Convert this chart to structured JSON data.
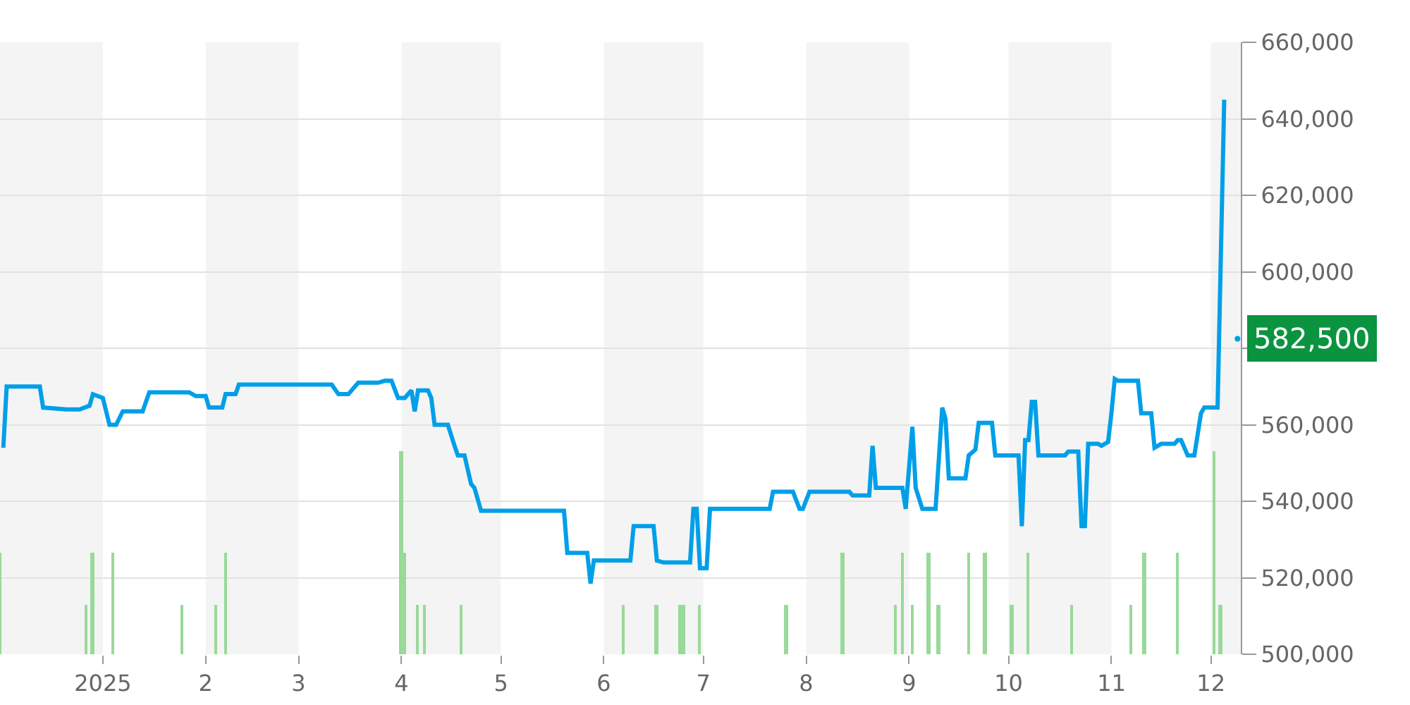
{
  "chart_data": {
    "type": "line",
    "xlim": [
      "2024-12-01",
      "2025-12-10"
    ],
    "xticks": [
      {
        "value": "2025-01-01",
        "label": "2025"
      },
      {
        "value": "2025-02-01",
        "label": "2"
      },
      {
        "value": "2025-03-01",
        "label": "3"
      },
      {
        "value": "2025-04-01",
        "label": "4"
      },
      {
        "value": "2025-05-01",
        "label": "5"
      },
      {
        "value": "2025-06-01",
        "label": "6"
      },
      {
        "value": "2025-07-01",
        "label": "7"
      },
      {
        "value": "2025-08-01",
        "label": "8"
      },
      {
        "value": "2025-09-01",
        "label": "9"
      },
      {
        "value": "2025-10-01",
        "label": "10"
      },
      {
        "value": "2025-11-01",
        "label": "11"
      },
      {
        "value": "2025-12-01",
        "label": "12"
      }
    ],
    "ylim": [
      500000,
      660000
    ],
    "yticks": [
      {
        "value": 500000,
        "label": "500,000"
      },
      {
        "value": 520000,
        "label": "520,000"
      },
      {
        "value": 540000,
        "label": "540,000"
      },
      {
        "value": 560000,
        "label": "560,000"
      },
      {
        "value": 580000,
        "label": null
      },
      {
        "value": 600000,
        "label": "600,000"
      },
      {
        "value": 620000,
        "label": "620,000"
      },
      {
        "value": 640000,
        "label": "640,000"
      },
      {
        "value": 660000,
        "label": "660,000"
      }
    ],
    "grid": "y",
    "marker": "none",
    "line_style": "solid",
    "bands": [
      {
        "axis": "x",
        "from": "2024-12-01",
        "to": "2025-01-01",
        "color": "#f4f4f4"
      },
      {
        "axis": "x",
        "from": "2025-02-01",
        "to": "2025-03-01",
        "color": "#f4f4f4"
      },
      {
        "axis": "x",
        "from": "2025-04-01",
        "to": "2025-05-01",
        "color": "#f4f4f4"
      },
      {
        "axis": "x",
        "from": "2025-06-01",
        "to": "2025-07-01",
        "color": "#f4f4f4"
      },
      {
        "axis": "x",
        "from": "2025-08-01",
        "to": "2025-09-01",
        "color": "#f4f4f4"
      },
      {
        "axis": "x",
        "from": "2025-10-01",
        "to": "2025-11-01",
        "color": "#f4f4f4"
      },
      {
        "axis": "x",
        "from": "2025-12-01",
        "to": "2025-12-10",
        "color": "#f4f4f4"
      }
    ],
    "annotations": [
      {
        "text": "582,500",
        "x": "2025-12-09",
        "y": 582500
      }
    ],
    "series": [
      {
        "type": "bar",
        "color": "#99d999",
        "x": [
          "2024-12-01",
          "2024-12-27",
          "2024-12-29",
          "2025-01-04",
          "2025-01-25",
          "2025-02-04",
          "2025-02-07",
          "2025-04-01",
          "2025-04-02",
          "2025-04-06",
          "2025-04-08",
          "2025-04-19",
          "2025-06-07",
          "2025-06-17",
          "2025-06-24",
          "2025-06-25",
          "2025-06-30",
          "2025-07-26",
          "2025-08-12",
          "2025-08-28",
          "2025-08-30",
          "2025-09-02",
          "2025-09-07",
          "2025-09-10",
          "2025-09-19",
          "2025-09-24",
          "2025-10-02",
          "2025-10-07",
          "2025-10-20",
          "2025-11-07",
          "2025-11-11",
          "2025-11-21",
          "2025-12-02",
          "2025-12-04"
        ],
        "values": [
          526500,
          513000,
          526500,
          526500,
          513000,
          513000,
          526500,
          553000,
          526500,
          513000,
          513000,
          513000,
          513000,
          513000,
          513000,
          513000,
          513000,
          513000,
          526500,
          513000,
          526500,
          513000,
          526500,
          513000,
          526500,
          526500,
          513000,
          526500,
          513000,
          513000,
          526500,
          526500,
          553000,
          513000
        ]
      },
      {
        "color": "#009fe8",
        "x": [
          "2024-12-02",
          "2024-12-03",
          "2024-12-13",
          "2024-12-14",
          "2024-12-21",
          "2024-12-25",
          "2024-12-28",
          "2024-12-29",
          "2025-01-01",
          "2025-01-03",
          "2025-01-05",
          "2025-01-07",
          "2025-01-13",
          "2025-01-15",
          "2025-01-27",
          "2025-01-29",
          "2025-02-01",
          "2025-02-02",
          "2025-02-06",
          "2025-02-07",
          "2025-02-10",
          "2025-02-11",
          "2025-03-11",
          "2025-03-13",
          "2025-03-16",
          "2025-03-19",
          "2025-03-25",
          "2025-03-27",
          "2025-03-29",
          "2025-03-31",
          "2025-04-02",
          "2025-04-04",
          "2025-04-05",
          "2025-04-06",
          "2025-04-09",
          "2025-04-10",
          "2025-04-11",
          "2025-04-15",
          "2025-04-17",
          "2025-04-18",
          "2025-04-20",
          "2025-04-22",
          "2025-04-23",
          "2025-04-25",
          "2025-05-20",
          "2025-05-21",
          "2025-05-27",
          "2025-05-28",
          "2025-05-29",
          "2025-06-09",
          "2025-06-10",
          "2025-06-16",
          "2025-06-17",
          "2025-06-19",
          "2025-06-27",
          "2025-06-28",
          "2025-06-29",
          "2025-06-30",
          "2025-07-02",
          "2025-07-03",
          "2025-07-21",
          "2025-07-22",
          "2025-07-28",
          "2025-07-30",
          "2025-07-31",
          "2025-08-02",
          "2025-08-14",
          "2025-08-15",
          "2025-08-20",
          "2025-08-21",
          "2025-08-22",
          "2025-08-30",
          "2025-08-31",
          "2025-09-02",
          "2025-09-03",
          "2025-09-05",
          "2025-09-09",
          "2025-09-11",
          "2025-09-12",
          "2025-09-13",
          "2025-09-18",
          "2025-09-19",
          "2025-09-21",
          "2025-09-22",
          "2025-09-26",
          "2025-09-27",
          "2025-10-04",
          "2025-10-05",
          "2025-10-06",
          "2025-10-07",
          "2025-10-08",
          "2025-10-09",
          "2025-10-10",
          "2025-10-18",
          "2025-10-19",
          "2025-10-22",
          "2025-10-23",
          "2025-10-24",
          "2025-10-25",
          "2025-10-28",
          "2025-10-29",
          "2025-10-31",
          "2025-11-01",
          "2025-11-02",
          "2025-11-03",
          "2025-11-09",
          "2025-11-10",
          "2025-11-13",
          "2025-11-14",
          "2025-11-16",
          "2025-11-20",
          "2025-11-21",
          "2025-11-22",
          "2025-11-24",
          "2025-11-26",
          "2025-11-28",
          "2025-11-29",
          "2025-12-03",
          "2025-12-05"
        ],
        "values": [
          554000,
          570000,
          570000,
          564500,
          564000,
          564000,
          565000,
          568000,
          567000,
          560000,
          560000,
          563500,
          563500,
          568500,
          568500,
          567500,
          567500,
          564500,
          564500,
          568000,
          568000,
          570500,
          570500,
          568000,
          568000,
          571000,
          571000,
          571500,
          571500,
          567000,
          567000,
          569000,
          563500,
          569000,
          569000,
          567000,
          560000,
          560000,
          554500,
          552000,
          552000,
          544500,
          543500,
          537500,
          537500,
          526500,
          526500,
          518500,
          524500,
          524500,
          533500,
          533500,
          524500,
          524000,
          524000,
          538000,
          538000,
          522500,
          522500,
          538000,
          538000,
          542500,
          542500,
          538000,
          538000,
          542500,
          542500,
          541500,
          541500,
          554500,
          543500,
          543500,
          538000,
          559500,
          543500,
          538000,
          538000,
          564500,
          561500,
          546000,
          546000,
          552000,
          553500,
          560500,
          560500,
          552000,
          552000,
          533500,
          556000,
          556000,
          566000,
          566000,
          552000,
          552000,
          553000,
          553000,
          533500,
          533500,
          555000,
          555000,
          554500,
          555500,
          563000,
          572000,
          571500,
          571500,
          563000,
          563000,
          554000,
          555000,
          555000,
          556000,
          556000,
          552000,
          552000,
          563000,
          564500,
          564500,
          645000
        ]
      }
    ]
  }
}
